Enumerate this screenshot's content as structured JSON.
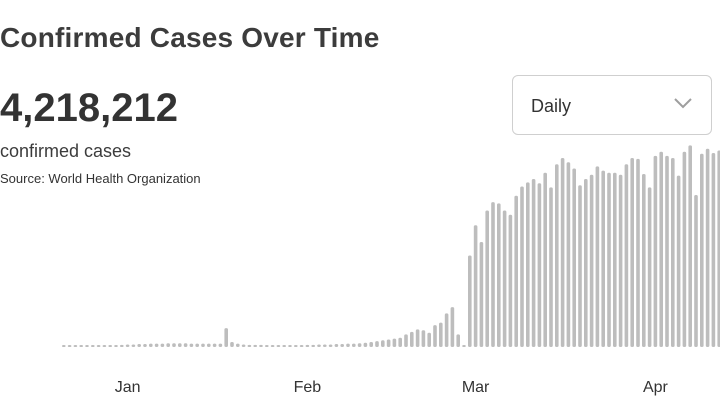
{
  "header": {
    "title": "Confirmed Cases Over Time",
    "total": "4,218,212",
    "total_label": "confirmed cases",
    "source": "Source: World Health Organization"
  },
  "dropdown": {
    "selected": "Daily",
    "icon": "chevron-down-icon"
  },
  "chart_data": {
    "type": "bar",
    "bar_color": "#bdbdbd",
    "x_tick_labels": [
      "Jan",
      "Feb",
      "Mar",
      "Apr"
    ],
    "x_tick_index": [
      11,
      42,
      71,
      102
    ],
    "grid": false,
    "legend": "none",
    "values": [
      1,
      1,
      1,
      1,
      2,
      2,
      2,
      3,
      3,
      4,
      5,
      6,
      6,
      7,
      7,
      8,
      8,
      8,
      9,
      9,
      9,
      9,
      8,
      8,
      8,
      8,
      8,
      8,
      45,
      12,
      8,
      6,
      5,
      5,
      5,
      4,
      4,
      4,
      4,
      4,
      4,
      4,
      5,
      5,
      6,
      6,
      6,
      7,
      7,
      8,
      8,
      9,
      10,
      12,
      14,
      16,
      18,
      20,
      22,
      30,
      36,
      42,
      40,
      34,
      52,
      58,
      80,
      95,
      30,
      0,
      218,
      290,
      250,
      325,
      345,
      342,
      325,
      315,
      360,
      382,
      392,
      400,
      390,
      415,
      380,
      435,
      450,
      440,
      425,
      385,
      400,
      410,
      430,
      420,
      415,
      415,
      410,
      435,
      450,
      448,
      412,
      380,
      455,
      465,
      455,
      450,
      408,
      465,
      480,
      362,
      460,
      472,
      462,
      468
    ],
    "ylim": [
      0,
      500
    ]
  }
}
